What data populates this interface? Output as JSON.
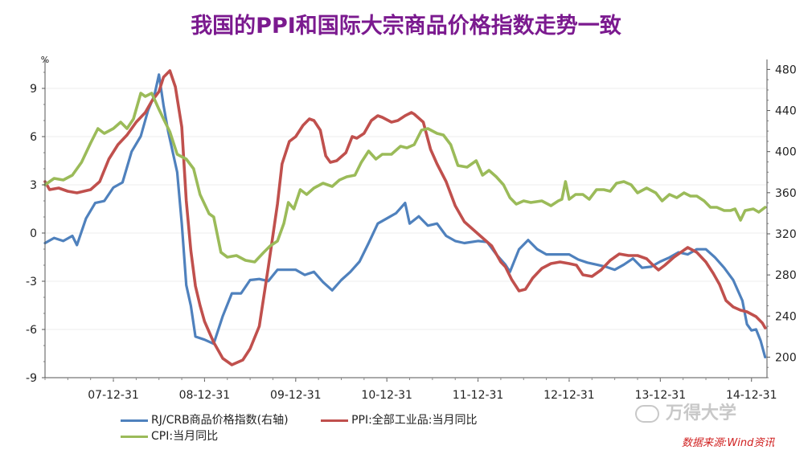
{
  "title": "我国的PPI和国际大宗商品价格指数走势一致",
  "chart_data": {
    "type": "line",
    "y_left_unit": "%",
    "y_left_lim": [
      -9,
      10.5
    ],
    "y_left_ticks": [
      9,
      6,
      3,
      0,
      -3,
      -6,
      -9
    ],
    "y_right_lim": [
      180,
      485
    ],
    "y_right_ticks": [
      480,
      440,
      400,
      360,
      320,
      280,
      240,
      200
    ],
    "x_lim": [
      2007.25,
      2015.17
    ],
    "x_ticks": [
      {
        "label": "07-12-31",
        "x": 2008.0
      },
      {
        "label": "08-12-31",
        "x": 2009.0
      },
      {
        "label": "09-12-31",
        "x": 2010.0
      },
      {
        "label": "10-12-31",
        "x": 2011.0
      },
      {
        "label": "11-12-31",
        "x": 2012.0
      },
      {
        "label": "12-12-31",
        "x": 2013.0
      },
      {
        "label": "13-12-31",
        "x": 2014.0
      },
      {
        "label": "14-12-31",
        "x": 2015.0
      }
    ],
    "grid": true,
    "legend_position": "bottom",
    "series": [
      {
        "name": "RJ/CRB商品价格指数(右轴)",
        "axis": "right",
        "color": "#4f81bd",
        "points": [
          [
            2007.25,
            311
          ],
          [
            2007.35,
            316
          ],
          [
            2007.45,
            313
          ],
          [
            2007.55,
            318
          ],
          [
            2007.6,
            309
          ],
          [
            2007.7,
            335
          ],
          [
            2007.8,
            350
          ],
          [
            2007.9,
            352
          ],
          [
            2008.0,
            365
          ],
          [
            2008.1,
            370
          ],
          [
            2008.2,
            400
          ],
          [
            2008.3,
            415
          ],
          [
            2008.38,
            440
          ],
          [
            2008.45,
            455
          ],
          [
            2008.5,
            475
          ],
          [
            2008.55,
            445
          ],
          [
            2008.6,
            420
          ],
          [
            2008.7,
            380
          ],
          [
            2008.75,
            330
          ],
          [
            2008.8,
            270
          ],
          [
            2008.85,
            250
          ],
          [
            2008.9,
            220
          ],
          [
            2009.0,
            217
          ],
          [
            2009.1,
            213
          ],
          [
            2009.2,
            240
          ],
          [
            2009.3,
            262
          ],
          [
            2009.4,
            262
          ],
          [
            2009.5,
            275
          ],
          [
            2009.6,
            276
          ],
          [
            2009.7,
            274
          ],
          [
            2009.8,
            285
          ],
          [
            2009.9,
            285
          ],
          [
            2010.0,
            285
          ],
          [
            2010.1,
            280
          ],
          [
            2010.2,
            283
          ],
          [
            2010.3,
            273
          ],
          [
            2010.4,
            265
          ],
          [
            2010.5,
            275
          ],
          [
            2010.6,
            283
          ],
          [
            2010.7,
            293
          ],
          [
            2010.8,
            311
          ],
          [
            2010.9,
            330
          ],
          [
            2011.0,
            335
          ],
          [
            2011.1,
            340
          ],
          [
            2011.2,
            350
          ],
          [
            2011.25,
            330
          ],
          [
            2011.35,
            337
          ],
          [
            2011.45,
            328
          ],
          [
            2011.55,
            330
          ],
          [
            2011.65,
            318
          ],
          [
            2011.75,
            313
          ],
          [
            2011.85,
            311
          ],
          [
            2012.0,
            313
          ],
          [
            2012.1,
            312
          ],
          [
            2012.2,
            300
          ],
          [
            2012.3,
            290
          ],
          [
            2012.35,
            283
          ],
          [
            2012.45,
            305
          ],
          [
            2012.55,
            314
          ],
          [
            2012.65,
            305
          ],
          [
            2012.75,
            300
          ],
          [
            2012.85,
            300
          ],
          [
            2013.0,
            300
          ],
          [
            2013.1,
            295
          ],
          [
            2013.2,
            292
          ],
          [
            2013.3,
            290
          ],
          [
            2013.4,
            288
          ],
          [
            2013.5,
            285
          ],
          [
            2013.6,
            290
          ],
          [
            2013.7,
            296
          ],
          [
            2013.8,
            287
          ],
          [
            2013.9,
            288
          ],
          [
            2014.0,
            293
          ],
          [
            2014.1,
            297
          ],
          [
            2014.2,
            302
          ],
          [
            2014.3,
            300
          ],
          [
            2014.4,
            305
          ],
          [
            2014.5,
            305
          ],
          [
            2014.6,
            297
          ],
          [
            2014.7,
            287
          ],
          [
            2014.8,
            275
          ],
          [
            2014.9,
            255
          ],
          [
            2014.95,
            232
          ],
          [
            2015.0,
            226
          ],
          [
            2015.05,
            227
          ],
          [
            2015.1,
            216
          ],
          [
            2015.15,
            200
          ]
        ]
      },
      {
        "name": "PPI:全部工业品:当月同比",
        "axis": "left",
        "color": "#c0504d",
        "points": [
          [
            2007.25,
            3.2
          ],
          [
            2007.3,
            2.7
          ],
          [
            2007.4,
            2.8
          ],
          [
            2007.5,
            2.6
          ],
          [
            2007.6,
            2.5
          ],
          [
            2007.75,
            2.7
          ],
          [
            2007.85,
            3.2
          ],
          [
            2007.95,
            4.6
          ],
          [
            2008.05,
            5.5
          ],
          [
            2008.15,
            6.1
          ],
          [
            2008.25,
            6.9
          ],
          [
            2008.35,
            7.5
          ],
          [
            2008.42,
            8.2
          ],
          [
            2008.5,
            8.8
          ],
          [
            2008.55,
            9.7
          ],
          [
            2008.62,
            10.1
          ],
          [
            2008.68,
            9.1
          ],
          [
            2008.75,
            6.6
          ],
          [
            2008.8,
            2.0
          ],
          [
            2008.85,
            -1.1
          ],
          [
            2008.9,
            -3.3
          ],
          [
            2008.95,
            -4.5
          ],
          [
            2009.0,
            -5.5
          ],
          [
            2009.1,
            -6.8
          ],
          [
            2009.2,
            -7.8
          ],
          [
            2009.3,
            -8.2
          ],
          [
            2009.42,
            -7.9
          ],
          [
            2009.5,
            -7.2
          ],
          [
            2009.6,
            -5.8
          ],
          [
            2009.7,
            -2.1
          ],
          [
            2009.8,
            1.8
          ],
          [
            2009.85,
            4.3
          ],
          [
            2009.93,
            5.7
          ],
          [
            2010.0,
            6.0
          ],
          [
            2010.08,
            6.7
          ],
          [
            2010.15,
            7.1
          ],
          [
            2010.2,
            7.0
          ],
          [
            2010.27,
            6.4
          ],
          [
            2010.33,
            4.8
          ],
          [
            2010.38,
            4.4
          ],
          [
            2010.45,
            4.5
          ],
          [
            2010.55,
            5.0
          ],
          [
            2010.62,
            6.0
          ],
          [
            2010.67,
            5.9
          ],
          [
            2010.75,
            6.2
          ],
          [
            2010.83,
            7.0
          ],
          [
            2010.9,
            7.3
          ],
          [
            2010.95,
            7.2
          ],
          [
            2011.05,
            6.9
          ],
          [
            2011.12,
            7.0
          ],
          [
            2011.2,
            7.3
          ],
          [
            2011.27,
            7.5
          ],
          [
            2011.3,
            7.4
          ],
          [
            2011.4,
            6.9
          ],
          [
            2011.48,
            5.2
          ],
          [
            2011.55,
            4.3
          ],
          [
            2011.65,
            3.2
          ],
          [
            2011.75,
            1.7
          ],
          [
            2011.85,
            0.7
          ],
          [
            2011.95,
            0.2
          ],
          [
            2012.05,
            -0.3
          ],
          [
            2012.15,
            -0.8
          ],
          [
            2012.25,
            -1.8
          ],
          [
            2012.3,
            -2.1
          ],
          [
            2012.37,
            -2.9
          ],
          [
            2012.45,
            -3.6
          ],
          [
            2012.52,
            -3.5
          ],
          [
            2012.6,
            -2.8
          ],
          [
            2012.7,
            -2.2
          ],
          [
            2012.8,
            -1.9
          ],
          [
            2012.9,
            -1.8
          ],
          [
            2013.0,
            -1.9
          ],
          [
            2013.08,
            -2.0
          ],
          [
            2013.15,
            -2.6
          ],
          [
            2013.25,
            -2.7
          ],
          [
            2013.35,
            -2.3
          ],
          [
            2013.45,
            -1.7
          ],
          [
            2013.55,
            -1.3
          ],
          [
            2013.65,
            -1.4
          ],
          [
            2013.75,
            -1.4
          ],
          [
            2013.85,
            -1.6
          ],
          [
            2013.92,
            -2.0
          ],
          [
            2013.98,
            -2.3
          ],
          [
            2014.05,
            -2.0
          ],
          [
            2014.15,
            -1.5
          ],
          [
            2014.25,
            -1.1
          ],
          [
            2014.3,
            -0.9
          ],
          [
            2014.4,
            -1.2
          ],
          [
            2014.5,
            -1.8
          ],
          [
            2014.58,
            -2.5
          ],
          [
            2014.65,
            -3.2
          ],
          [
            2014.72,
            -4.2
          ],
          [
            2014.8,
            -4.6
          ],
          [
            2014.88,
            -4.8
          ],
          [
            2014.95,
            -4.9
          ],
          [
            2015.05,
            -5.2
          ],
          [
            2015.12,
            -5.6
          ],
          [
            2015.15,
            -5.9
          ]
        ]
      },
      {
        "name": "CPI:当月同比",
        "axis": "left",
        "color": "#9bbb59",
        "points": [
          [
            2007.25,
            3.0
          ],
          [
            2007.35,
            3.4
          ],
          [
            2007.45,
            3.3
          ],
          [
            2007.55,
            3.6
          ],
          [
            2007.65,
            4.4
          ],
          [
            2007.75,
            5.6
          ],
          [
            2007.83,
            6.5
          ],
          [
            2007.9,
            6.2
          ],
          [
            2008.0,
            6.5
          ],
          [
            2008.08,
            6.9
          ],
          [
            2008.15,
            6.5
          ],
          [
            2008.22,
            7.1
          ],
          [
            2008.3,
            8.7
          ],
          [
            2008.35,
            8.5
          ],
          [
            2008.42,
            8.7
          ],
          [
            2008.5,
            7.7
          ],
          [
            2008.55,
            7.1
          ],
          [
            2008.62,
            6.3
          ],
          [
            2008.7,
            4.9
          ],
          [
            2008.8,
            4.6
          ],
          [
            2008.88,
            4.0
          ],
          [
            2008.95,
            2.4
          ],
          [
            2009.05,
            1.2
          ],
          [
            2009.1,
            1.0
          ],
          [
            2009.18,
            -1.2
          ],
          [
            2009.25,
            -1.5
          ],
          [
            2009.35,
            -1.4
          ],
          [
            2009.45,
            -1.7
          ],
          [
            2009.55,
            -1.8
          ],
          [
            2009.65,
            -1.2
          ],
          [
            2009.72,
            -0.8
          ],
          [
            2009.8,
            -0.5
          ],
          [
            2009.87,
            0.6
          ],
          [
            2009.92,
            1.9
          ],
          [
            2009.98,
            1.5
          ],
          [
            2010.05,
            2.7
          ],
          [
            2010.12,
            2.4
          ],
          [
            2010.2,
            2.8
          ],
          [
            2010.3,
            3.1
          ],
          [
            2010.4,
            2.9
          ],
          [
            2010.48,
            3.3
          ],
          [
            2010.56,
            3.5
          ],
          [
            2010.65,
            3.6
          ],
          [
            2010.72,
            4.4
          ],
          [
            2010.8,
            5.1
          ],
          [
            2010.88,
            4.6
          ],
          [
            2010.95,
            4.9
          ],
          [
            2011.05,
            4.9
          ],
          [
            2011.15,
            5.4
          ],
          [
            2011.22,
            5.3
          ],
          [
            2011.3,
            5.5
          ],
          [
            2011.38,
            6.4
          ],
          [
            2011.45,
            6.5
          ],
          [
            2011.55,
            6.2
          ],
          [
            2011.62,
            6.1
          ],
          [
            2011.7,
            5.5
          ],
          [
            2011.78,
            4.2
          ],
          [
            2011.88,
            4.1
          ],
          [
            2011.98,
            4.5
          ],
          [
            2012.05,
            3.6
          ],
          [
            2012.12,
            3.9
          ],
          [
            2012.2,
            3.5
          ],
          [
            2012.28,
            3.0
          ],
          [
            2012.35,
            2.2
          ],
          [
            2012.42,
            1.8
          ],
          [
            2012.5,
            2.0
          ],
          [
            2012.58,
            1.9
          ],
          [
            2012.7,
            2.0
          ],
          [
            2012.8,
            1.7
          ],
          [
            2012.88,
            2.0
          ],
          [
            2012.92,
            2.1
          ],
          [
            2012.96,
            3.2
          ],
          [
            2013.0,
            2.1
          ],
          [
            2013.07,
            2.4
          ],
          [
            2013.15,
            2.4
          ],
          [
            2013.22,
            2.1
          ],
          [
            2013.3,
            2.7
          ],
          [
            2013.38,
            2.7
          ],
          [
            2013.45,
            2.6
          ],
          [
            2013.52,
            3.1
          ],
          [
            2013.6,
            3.2
          ],
          [
            2013.68,
            3.0
          ],
          [
            2013.75,
            2.5
          ],
          [
            2013.85,
            2.8
          ],
          [
            2013.95,
            2.5
          ],
          [
            2014.02,
            2.0
          ],
          [
            2014.1,
            2.4
          ],
          [
            2014.18,
            2.2
          ],
          [
            2014.26,
            2.5
          ],
          [
            2014.33,
            2.3
          ],
          [
            2014.4,
            2.3
          ],
          [
            2014.48,
            2.0
          ],
          [
            2014.55,
            1.6
          ],
          [
            2014.62,
            1.6
          ],
          [
            2014.7,
            1.4
          ],
          [
            2014.77,
            1.4
          ],
          [
            2014.82,
            1.5
          ],
          [
            2014.88,
            0.8
          ],
          [
            2014.93,
            1.4
          ],
          [
            2015.02,
            1.5
          ],
          [
            2015.08,
            1.3
          ],
          [
            2015.15,
            1.6
          ]
        ]
      }
    ]
  },
  "watermark": "万得大学",
  "source_note": "数据来源:Wind资讯"
}
